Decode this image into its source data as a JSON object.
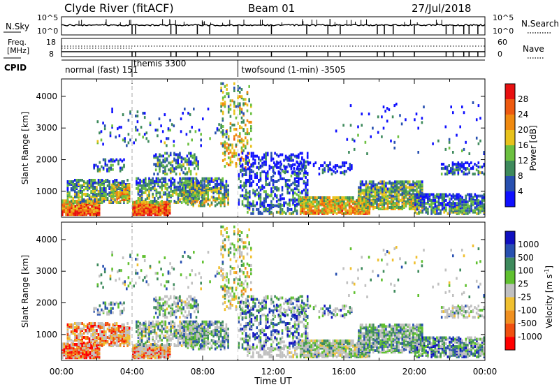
{
  "header": {
    "station": "Clyde River (fitACF)",
    "beam": "Beam 01",
    "date": "27/Jul/2018"
  },
  "panels": {
    "nsky_label": "N.Sky",
    "nsearch_label": "N.Search",
    "freq_label_line1": "Freq.",
    "freq_label_line2": "[MHz]",
    "nave_label": "Nave",
    "cpid_label": "CPID",
    "nsky_left_ticks": [
      "10^5",
      "10^0"
    ],
    "nsky_right_ticks": [
      "10^5",
      "10^0"
    ],
    "freq_left_ticks": [
      "18",
      "8"
    ],
    "freq_right_ticks": [
      "60",
      "0"
    ]
  },
  "cpid_modes": [
    {
      "label": "normal (fast) 151",
      "start": 0.0,
      "end": 4.0
    },
    {
      "label": "themis 3300",
      "start": 4.0,
      "end": 10.0
    },
    {
      "label": "twofsound (1-min) -3505",
      "start": 10.0,
      "end": 24.0
    }
  ],
  "colors": {
    "power": [
      "#1010ff",
      "#2850b0",
      "#3e8a5c",
      "#6cc040",
      "#e8c21c",
      "#f08a10",
      "#ee5a10",
      "#e81010"
    ],
    "velocity": [
      "#ff0000",
      "#f05010",
      "#f09020",
      "#f0c030",
      "#c0c0c0",
      "#60c030",
      "#3e8a5c",
      "#2850b0",
      "#1010c0"
    ],
    "ground_scatter": "#c0c0c0"
  },
  "chart_data": [
    {
      "type": "heatmap",
      "title": "",
      "xlabel": "Time UT",
      "ylabel": "Slant Range [km]",
      "x_tick_labels": [
        "00:00",
        "04:00",
        "08:00",
        "12:00",
        "16:00",
        "20:00",
        "00:00"
      ],
      "x_ticks_hours": [
        0,
        4,
        8,
        12,
        16,
        20,
        24
      ],
      "xlim": [
        0,
        24
      ],
      "y_ticks": [
        "1000",
        "2000",
        "3000",
        "4000"
      ],
      "ylim": [
        180,
        4550
      ],
      "colorbar_label": "Power [dB]",
      "colorbar_ticks": [
        "4",
        "8",
        "12",
        "16",
        "20",
        "24",
        "28"
      ]
    },
    {
      "type": "heatmap",
      "title": "",
      "xlabel": "Time UT",
      "ylabel": "Slant Range [km]",
      "xlim": [
        0,
        24
      ],
      "y_ticks": [
        "1000",
        "2000",
        "3000",
        "4000"
      ],
      "ylim": [
        180,
        4550
      ],
      "colorbar_label_main": "Velocity [m s",
      "colorbar_label_sup": "-1",
      "colorbar_label_close": "]",
      "colorbar_ticks": [
        "1000",
        "500",
        "100",
        "25",
        "-25",
        "-100",
        "-500",
        "-1000"
      ]
    }
  ]
}
